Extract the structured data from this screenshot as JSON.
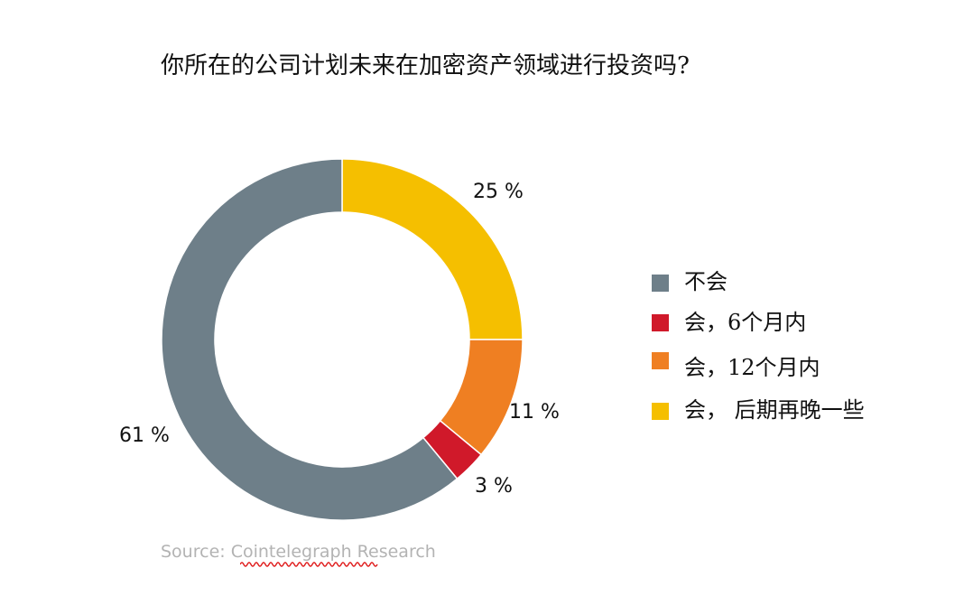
{
  "chart_data": {
    "type": "pie",
    "donut": true,
    "title": "你所在的公司计划未来在加密资产领域进行投资吗?",
    "slices": [
      {
        "label": "会， 后期再晚一些",
        "value": 25,
        "display": "25 %",
        "color": "#F5BF00"
      },
      {
        "label": "会，12个月内",
        "value": 11,
        "display": "11 %",
        "color": "#EF7F22"
      },
      {
        "label": "会，6个月内",
        "value": 3,
        "display": "3 %",
        "color": "#D0192A"
      },
      {
        "label": "不会",
        "value": 61,
        "display": "61 %",
        "color": "#6E7F89"
      }
    ],
    "legend": {
      "placement": "right",
      "items": [
        {
          "label": "不会",
          "color": "#6E7F89"
        },
        {
          "label": "会，6个月内",
          "color": "#D0192A"
        },
        {
          "label": "会，12个月内",
          "color": "#EF7F22"
        },
        {
          "label": "会， 后期再晚一些",
          "color": "#F5BF00"
        }
      ]
    },
    "source": "Source: Cointelegraph Research"
  }
}
